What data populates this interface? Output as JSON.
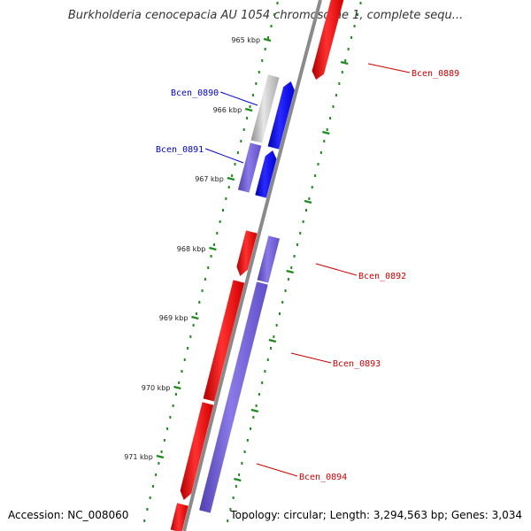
{
  "title": "Burkholderia cenocepacia AU 1054 chromosome 1, complete sequ...",
  "footer": {
    "accession": "Accession: NC_008060",
    "summary": "Topology: circular; Length: 3,294,563 bp; Genes: 3,034"
  },
  "colors": {
    "backbone": "#7a7a7a",
    "forward_cds": "#ff2020",
    "reverse_cds": "#7060d8",
    "dark_blue_cds": "#1010ff",
    "gray_cds": "#c0c0c0",
    "tick_dots": "#1f8a1f",
    "label_red": "#cc0000",
    "label_blue": "#0000cc"
  },
  "ticks": [
    {
      "label": "965 kbp"
    },
    {
      "label": "966 kbp"
    },
    {
      "label": "967 kbp"
    },
    {
      "label": "968 kbp"
    },
    {
      "label": "969 kbp"
    },
    {
      "label": "970 kbp"
    },
    {
      "label": "971 kbp"
    }
  ],
  "genes": [
    {
      "name": "Bcen_0889",
      "strand": "forward"
    },
    {
      "name": "Bcen_0890",
      "strand": "reverse"
    },
    {
      "name": "Bcen_0891",
      "strand": "reverse"
    },
    {
      "name": "Bcen_0892",
      "strand": "forward"
    },
    {
      "name": "Bcen_0893",
      "strand": "reverse"
    },
    {
      "name": "Bcen_0894",
      "strand": "reverse"
    }
  ]
}
